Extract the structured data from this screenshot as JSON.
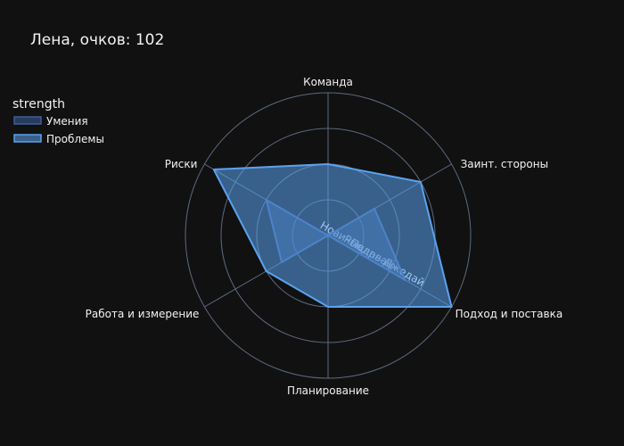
{
  "chart_data": {
    "type": "radar",
    "title": "Лена, очков: 102",
    "legend": {
      "title": "strength",
      "placement": "top-left"
    },
    "axes": [
      "Команда",
      "Заинт. стороны",
      "Подход и поставка",
      "Планирование",
      "Работа и измерение",
      "Риски"
    ],
    "ring_labels": [
      "Новичок",
      "Падаван",
      "Рыцарь-Джедай"
    ],
    "rmax": 4,
    "series": [
      {
        "name": "Умения",
        "values": [
          0,
          1.5,
          2.5,
          0,
          1.5,
          2
        ],
        "color": "#3d5e9e"
      },
      {
        "name": "Проблемы",
        "values": [
          2,
          3,
          4,
          2,
          2,
          3.7
        ],
        "color": "#5aa2ef"
      }
    ],
    "grid": true
  }
}
